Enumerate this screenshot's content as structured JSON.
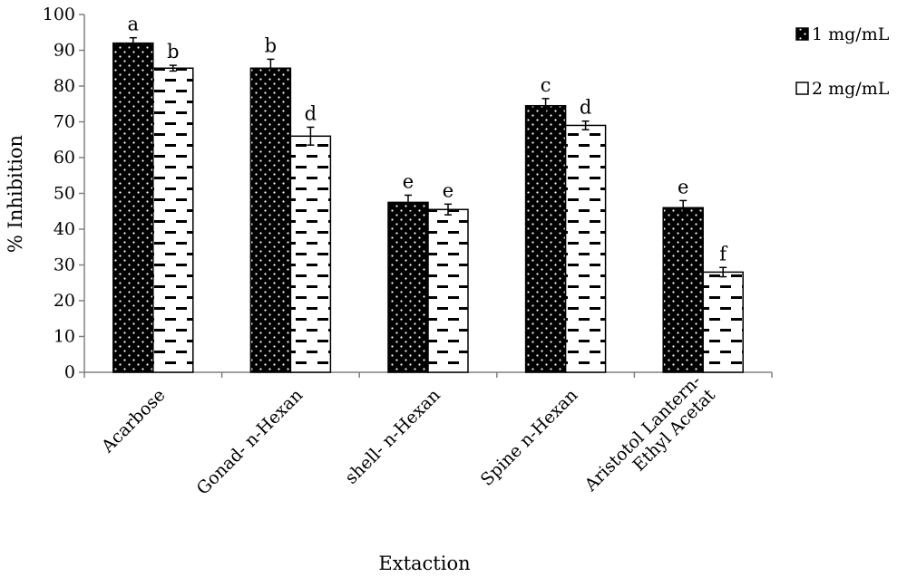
{
  "chart_data": {
    "type": "bar",
    "categories": [
      [
        "Acarbose"
      ],
      [
        "Gonad- n-Hexan"
      ],
      [
        "shell- n-Hexan"
      ],
      [
        "Spine n-Hexan"
      ],
      [
        "Aristotol Lantern-",
        "Ethyl Acetat"
      ]
    ],
    "series": [
      {
        "name": "1 mg/mL",
        "pattern": "dots-on-black",
        "values": [
          92,
          85,
          47.5,
          74.5,
          46
        ],
        "errors": [
          1.5,
          2.5,
          2.0,
          2.0,
          2.0
        ],
        "letters": [
          "a",
          "b",
          "e",
          "c",
          "e"
        ]
      },
      {
        "name": "2 mg/mL",
        "pattern": "dashes-on-white",
        "values": [
          85,
          66,
          45.5,
          69,
          28
        ],
        "errors": [
          0.8,
          2.5,
          1.5,
          1.2,
          1.3
        ],
        "letters": [
          "b",
          "d",
          "e",
          "d",
          "f"
        ]
      }
    ],
    "xlabel": "Extaction",
    "ylabel": "% Inhibition",
    "ylim": [
      0,
      100
    ],
    "yticks": [
      0,
      10,
      20,
      30,
      40,
      50,
      60,
      70,
      80,
      90,
      100
    ],
    "grid": false,
    "legend_position": "top-right"
  },
  "colors": {
    "dark_fill": "#000000",
    "light_fill": "#ffffff",
    "axis": "#808080",
    "outline": "#000000"
  }
}
